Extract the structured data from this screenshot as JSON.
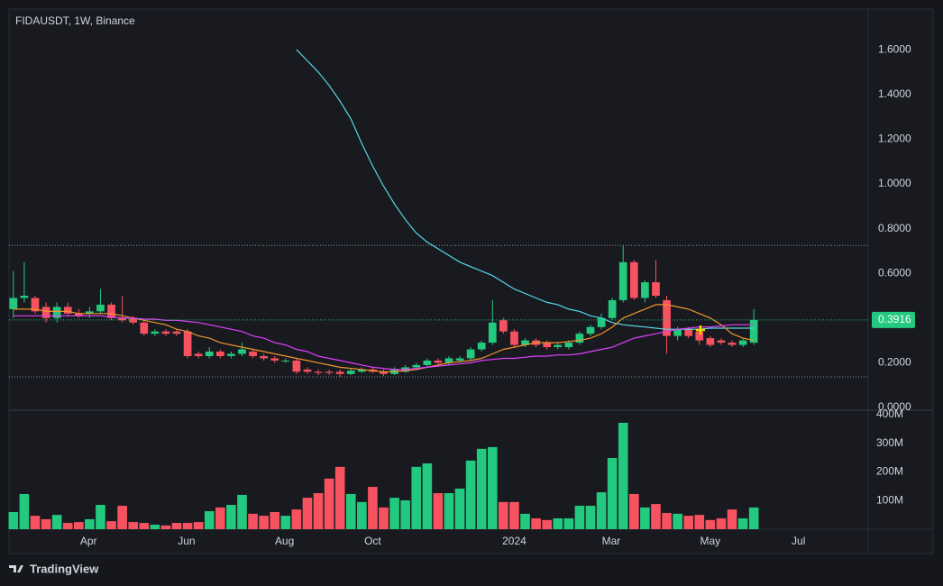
{
  "brand": "TradingView",
  "chart_data": {
    "type": "candlestick",
    "title": "FIDAUSDT, 1W, Binance",
    "up_color": "#22c97e",
    "down_color": "#f7525f",
    "xlim": [
      -0.4,
      78.5
    ],
    "xticks": [
      {
        "value": 6.9,
        "label": "Apr"
      },
      {
        "value": 15.9,
        "label": "Jun"
      },
      {
        "value": 24.9,
        "label": "Aug"
      },
      {
        "value": 33,
        "label": "Oct"
      },
      {
        "value": 46,
        "label": "2024"
      },
      {
        "value": 54.9,
        "label": "Mar"
      },
      {
        "value": 64,
        "label": "May"
      },
      {
        "value": 72.1,
        "label": "Jul"
      }
    ],
    "ylim": [
      -0.012,
      1.782
    ],
    "yticks": [
      {
        "value": 0,
        "label": "0.0000"
      },
      {
        "value": 0.2,
        "label": "0.2000"
      },
      {
        "value": 0.6,
        "label": "0.6000"
      },
      {
        "value": 0.8,
        "label": "0.8000"
      },
      {
        "value": 1,
        "label": "1.0000"
      },
      {
        "value": 1.2,
        "label": "1.2000"
      },
      {
        "value": 1.4,
        "label": "1.4000"
      },
      {
        "value": 1.6,
        "label": "1.6000"
      }
    ],
    "volume_ylim": [
      0,
      416
    ],
    "volume_ticks": [
      {
        "value": 100,
        "label": "100M"
      },
      {
        "value": 200,
        "label": "200M"
      },
      {
        "value": 300,
        "label": "300M"
      },
      {
        "value": 400,
        "label": "400M"
      }
    ],
    "last_price": 0.3916,
    "open": [
      0.44,
      0.49,
      0.49,
      0.45,
      0.4,
      0.45,
      0.42,
      0.42,
      0.43,
      0.46,
      0.4,
      0.4,
      0.38,
      0.33,
      0.34,
      0.34,
      0.34,
      0.24,
      0.23,
      0.25,
      0.23,
      0.24,
      0.25,
      0.23,
      0.22,
      0.21,
      0.21,
      0.17,
      0.16,
      0.16,
      0.16,
      0.15,
      0.16,
      0.17,
      0.16,
      0.15,
      0.16,
      0.18,
      0.19,
      0.21,
      0.2,
      0.21,
      0.22,
      0.26,
      0.29,
      0.39,
      0.34,
      0.28,
      0.3,
      0.29,
      0.27,
      0.27,
      0.29,
      0.33,
      0.36,
      0.4,
      0.48,
      0.65,
      0.49,
      0.56,
      0.48,
      0.32,
      0.35,
      0.34,
      0.31,
      0.3,
      0.29,
      0.28,
      0.29
    ],
    "high": [
      0.61,
      0.65,
      0.5,
      0.47,
      0.47,
      0.47,
      0.44,
      0.45,
      0.53,
      0.47,
      0.5,
      0.41,
      0.39,
      0.35,
      0.35,
      0.35,
      0.35,
      0.25,
      0.27,
      0.26,
      0.25,
      0.29,
      0.26,
      0.24,
      0.23,
      0.22,
      0.22,
      0.18,
      0.17,
      0.17,
      0.17,
      0.175,
      0.18,
      0.18,
      0.17,
      0.18,
      0.19,
      0.2,
      0.22,
      0.22,
      0.23,
      0.23,
      0.27,
      0.3,
      0.48,
      0.4,
      0.35,
      0.31,
      0.31,
      0.3,
      0.29,
      0.3,
      0.34,
      0.37,
      0.42,
      0.49,
      0.725,
      0.66,
      0.57,
      0.66,
      0.5,
      0.36,
      0.36,
      0.35,
      0.32,
      0.31,
      0.3,
      0.31,
      0.44
    ],
    "low": [
      0.4,
      0.47,
      0.42,
      0.38,
      0.38,
      0.41,
      0.4,
      0.4,
      0.42,
      0.39,
      0.38,
      0.37,
      0.32,
      0.32,
      0.32,
      0.32,
      0.22,
      0.22,
      0.22,
      0.22,
      0.22,
      0.23,
      0.22,
      0.21,
      0.2,
      0.2,
      0.15,
      0.15,
      0.145,
      0.145,
      0.137,
      0.145,
      0.155,
      0.155,
      0.14,
      0.145,
      0.155,
      0.17,
      0.18,
      0.19,
      0.19,
      0.2,
      0.21,
      0.25,
      0.28,
      0.33,
      0.27,
      0.27,
      0.27,
      0.26,
      0.26,
      0.26,
      0.28,
      0.32,
      0.35,
      0.39,
      0.47,
      0.48,
      0.47,
      0.49,
      0.24,
      0.3,
      0.31,
      0.28,
      0.27,
      0.28,
      0.27,
      0.27,
      0.28
    ],
    "close": [
      0.49,
      0.5,
      0.43,
      0.4,
      0.45,
      0.42,
      0.41,
      0.43,
      0.46,
      0.4,
      0.39,
      0.38,
      0.33,
      0.34,
      0.33,
      0.33,
      0.23,
      0.23,
      0.25,
      0.23,
      0.24,
      0.26,
      0.23,
      0.22,
      0.21,
      0.21,
      0.16,
      0.16,
      0.155,
      0.155,
      0.15,
      0.165,
      0.17,
      0.16,
      0.15,
      0.17,
      0.18,
      0.19,
      0.21,
      0.2,
      0.22,
      0.22,
      0.26,
      0.29,
      0.38,
      0.34,
      0.28,
      0.3,
      0.28,
      0.27,
      0.28,
      0.29,
      0.33,
      0.36,
      0.4,
      0.48,
      0.65,
      0.49,
      0.56,
      0.5,
      0.32,
      0.35,
      0.32,
      0.3,
      0.28,
      0.29,
      0.28,
      0.3,
      0.3916
    ],
    "volume": [
      60,
      123,
      47,
      35,
      50,
      22,
      25,
      35,
      85,
      28,
      82,
      25,
      22,
      16,
      13,
      22,
      22,
      25,
      63,
      76,
      85,
      120,
      54,
      47,
      60,
      47,
      69,
      110,
      126,
      177,
      218,
      123,
      95,
      148,
      76,
      110,
      101,
      218,
      230,
      126,
      126,
      142,
      240,
      281,
      287,
      95,
      95,
      54,
      38,
      32,
      38,
      38,
      82,
      82,
      129,
      249,
      372,
      123,
      76,
      88,
      57,
      54,
      47,
      50,
      32,
      38,
      69,
      38,
      76
    ],
    "series": [
      {
        "color": "#57d7e6",
        "values": [
          null,
          null,
          null,
          null,
          null,
          null,
          null,
          null,
          null,
          null,
          null,
          null,
          null,
          null,
          null,
          null,
          null,
          null,
          null,
          null,
          null,
          null,
          null,
          null,
          null,
          null,
          1.6,
          1.55,
          1.5,
          1.44,
          1.37,
          1.29,
          1.18,
          1.08,
          0.99,
          0.91,
          0.84,
          0.78,
          0.74,
          0.71,
          0.68,
          0.65,
          0.63,
          0.61,
          0.59,
          0.56,
          0.53,
          0.51,
          0.49,
          0.47,
          0.46,
          0.44,
          0.43,
          0.41,
          0.4,
          0.38,
          0.37,
          0.365,
          0.36,
          0.355,
          0.35,
          0.35,
          0.35,
          0.35,
          0.355,
          0.355,
          0.355,
          0.355,
          0.355
        ]
      },
      {
        "color": "#f0932b",
        "values": [
          0.44,
          0.44,
          0.44,
          0.43,
          0.43,
          0.43,
          0.42,
          0.42,
          0.42,
          0.42,
          0.41,
          0.4,
          0.39,
          0.38,
          0.37,
          0.35,
          0.34,
          0.32,
          0.31,
          0.29,
          0.28,
          0.27,
          0.26,
          0.25,
          0.24,
          0.23,
          0.22,
          0.21,
          0.2,
          0.19,
          0.18,
          0.175,
          0.17,
          0.165,
          0.16,
          0.16,
          0.165,
          0.17,
          0.18,
          0.19,
          0.2,
          0.205,
          0.21,
          0.22,
          0.24,
          0.26,
          0.27,
          0.28,
          0.29,
          0.29,
          0.29,
          0.295,
          0.3,
          0.31,
          0.33,
          0.36,
          0.4,
          0.42,
          0.44,
          0.46,
          0.46,
          0.45,
          0.44,
          0.42,
          0.4,
          0.37,
          0.33,
          0.31,
          0.3
        ]
      },
      {
        "color": "#e040fb",
        "values": [
          0.41,
          0.41,
          0.41,
          0.41,
          0.41,
          0.41,
          0.41,
          0.41,
          0.41,
          0.405,
          0.4,
          0.4,
          0.395,
          0.395,
          0.39,
          0.39,
          0.385,
          0.38,
          0.37,
          0.36,
          0.35,
          0.34,
          0.32,
          0.31,
          0.29,
          0.28,
          0.26,
          0.25,
          0.23,
          0.22,
          0.21,
          0.2,
          0.19,
          0.18,
          0.175,
          0.17,
          0.17,
          0.175,
          0.18,
          0.185,
          0.19,
          0.195,
          0.2,
          0.21,
          0.215,
          0.22,
          0.22,
          0.225,
          0.23,
          0.23,
          0.235,
          0.235,
          0.24,
          0.25,
          0.26,
          0.27,
          0.29,
          0.31,
          0.32,
          0.33,
          0.34,
          0.35,
          0.355,
          0.36,
          0.36,
          0.365,
          0.37,
          0.37,
          0.37
        ]
      }
    ]
  }
}
